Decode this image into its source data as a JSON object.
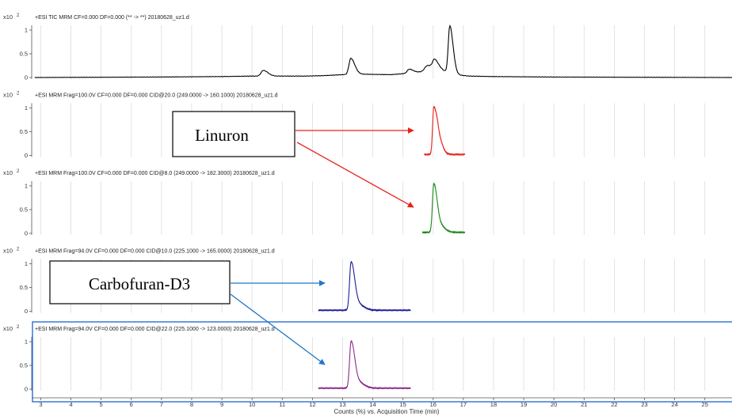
{
  "chart_data": {
    "type": "line",
    "x_axis": {
      "title": "Counts (%) vs. Acquisition Time (min)",
      "xlim": [
        2.7,
        25.9
      ],
      "ticks": [
        3,
        4,
        5,
        6,
        7,
        8,
        9,
        10,
        11,
        12,
        13,
        14,
        15,
        16,
        17,
        18,
        19,
        20,
        21,
        22,
        23,
        24,
        25
      ]
    },
    "y_scale_label": "x10",
    "y_scale_exp": "2",
    "y_ticks": [
      {
        "value": 0,
        "label": "0"
      },
      {
        "value": 0.5,
        "label": "0.5"
      },
      {
        "value": 1,
        "label": "1"
      }
    ],
    "grid": true,
    "panels": [
      {
        "header": "+ESI TIC MRM CF=0.000 DF=0.000 (** -> **) 20180628_uz1.d",
        "color": "#000000",
        "range": [
          2.8,
          25.9
        ],
        "base": 0.0,
        "baseline": [
          [
            2.8,
            0.0
          ],
          [
            6.8,
            0.01
          ],
          [
            9.0,
            0.02
          ],
          [
            10.0,
            0.03
          ],
          [
            11.8,
            0.03
          ],
          [
            12.4,
            0.04
          ],
          [
            13.0,
            0.06
          ],
          [
            13.6,
            0.07
          ],
          [
            14.6,
            0.06
          ],
          [
            15.0,
            0.08
          ],
          [
            15.6,
            0.12
          ],
          [
            16.0,
            0.18
          ],
          [
            16.3,
            0.15
          ],
          [
            16.7,
            0.06
          ],
          [
            17.2,
            0.03
          ],
          [
            18.0,
            0.02
          ],
          [
            20.0,
            0.01
          ],
          [
            25.9,
            0.0
          ]
        ],
        "peaks": [
          {
            "x": 10.37,
            "h": 0.12,
            "w": 0.07
          },
          {
            "x": 13.27,
            "h": 0.34,
            "w": 0.06
          },
          {
            "x": 15.2,
            "h": 0.08,
            "w": 0.06
          },
          {
            "x": 15.8,
            "h": 0.1,
            "w": 0.08
          },
          {
            "x": 16.05,
            "h": 0.18,
            "w": 0.06
          },
          {
            "x": 16.55,
            "h": 1.0,
            "w": 0.05
          }
        ]
      },
      {
        "header": "+ESI MRM Frag=100.0V CF=0.000 DF=0.000 CID@20.0 (249.0000 -> 160.1000) 20180628_uz1.d",
        "color": "#e8221c",
        "range": [
          15.7,
          17.05
        ],
        "base": 0.02,
        "baseline": [],
        "peaks": [
          {
            "x": 16.02,
            "h": 0.97,
            "w": 0.04
          },
          {
            "x": 16.16,
            "h": 0.38,
            "w": 0.06
          }
        ]
      },
      {
        "header": "+ESI MRM Frag=100.0V CF=0.000 DF=0.000 CID@8.0 (249.0000 -> 182.3000) 20180628_uz1.d",
        "color": "#1a8a1a",
        "range": [
          15.65,
          17.05
        ],
        "base": 0.02,
        "baseline": [],
        "peaks": [
          {
            "x": 16.02,
            "h": 1.0,
            "w": 0.045
          },
          {
            "x": 16.18,
            "h": 0.18,
            "w": 0.08
          }
        ]
      },
      {
        "header": "+ESI MRM Frag=94.0V CF=0.000 DF=0.000 CID@10.0 (225.1000 -> 165.0000) 20180628_uz1.d",
        "color": "#1c1c9a",
        "range": [
          12.2,
          15.25
        ],
        "base": 0.02,
        "baseline": [],
        "peaks": [
          {
            "x": 13.28,
            "h": 0.98,
            "w": 0.05
          },
          {
            "x": 13.45,
            "h": 0.15,
            "w": 0.1
          }
        ]
      },
      {
        "header": "+ESI MRM Frag=94.0V CF=0.000 DF=0.000 CID@22.0 (225.1000 -> 123.0000) 20180628_uz1.d",
        "color": "#8a2a8a",
        "range": [
          12.2,
          15.25
        ],
        "base": 0.02,
        "baseline": [],
        "peaks": [
          {
            "x": 13.28,
            "h": 0.95,
            "w": 0.05
          },
          {
            "x": 13.45,
            "h": 0.15,
            "w": 0.1
          }
        ]
      }
    ],
    "annotations": [
      {
        "text": "Linuron",
        "arrow_color": "#e8221c"
      },
      {
        "text": "Carbofuran-D3",
        "arrow_color": "#1f77c8"
      }
    ]
  }
}
